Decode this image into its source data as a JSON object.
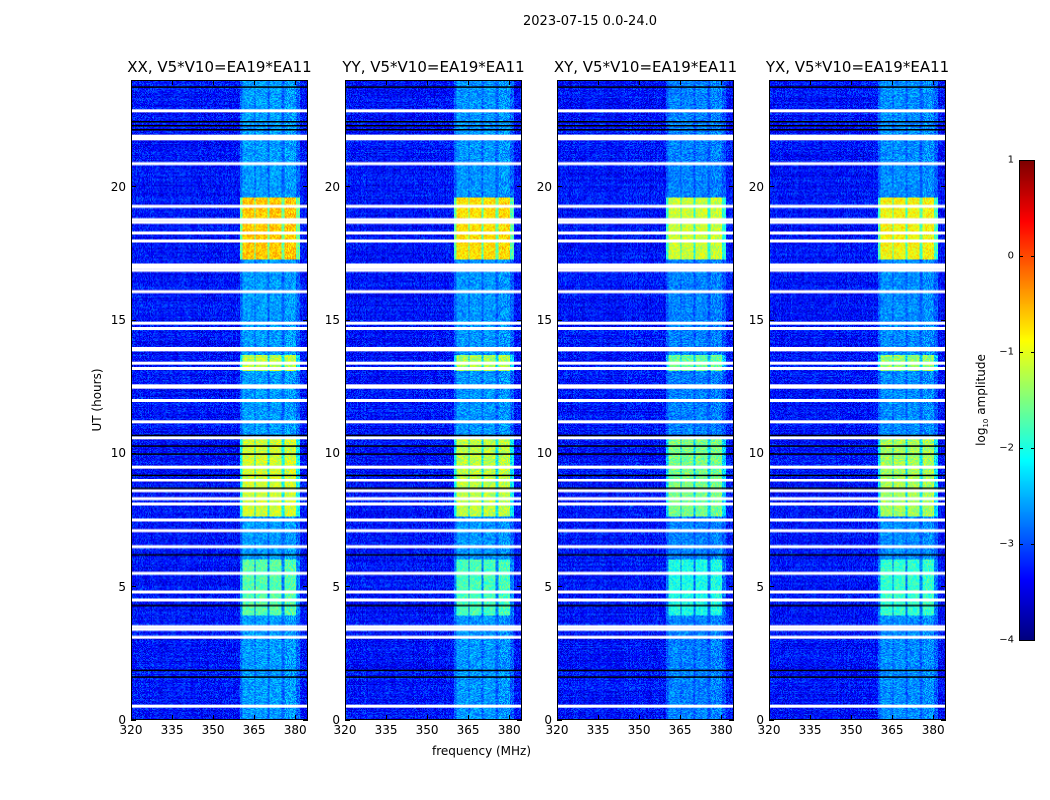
{
  "chart_data": {
    "type": "heatmap",
    "title": "2023-07-15 0.0-24.0",
    "xlabel": "frequency (MHz)",
    "ylabel": "UT (hours)",
    "xlim": [
      320,
      384.7
    ],
    "ylim": [
      0,
      24
    ],
    "xticks": [
      "320",
      "335",
      "350",
      "365",
      "380"
    ],
    "xtick_values": [
      320,
      335,
      350,
      365,
      380
    ],
    "yticks": [
      "0",
      "5",
      "10",
      "15",
      "20"
    ],
    "ytick_values": [
      0,
      5,
      10,
      15,
      20
    ],
    "colormap": "jet",
    "colorbar": {
      "label_main": "log",
      "label_sub": "10",
      "label_rest": " amplitude",
      "range": [
        -4,
        1
      ],
      "ticks": [
        "1",
        "0",
        "−1",
        "−2",
        "−3",
        "−4"
      ],
      "tick_values": [
        1,
        0,
        -1,
        -2,
        -3,
        -4
      ]
    },
    "panels": [
      {
        "title": "XX, V5*V10=EA19*EA11",
        "gain": 1.0
      },
      {
        "title": "YY, V5*V10=EA19*EA11",
        "gain": 0.95
      },
      {
        "title": "XY, V5*V10=EA19*EA11",
        "gain": 0.8
      },
      {
        "title": "YX, V5*V10=EA19*EA11",
        "gain": 0.9
      }
    ],
    "background_level": -3.3,
    "rfi_channels_mhz": [
      [
        361,
        365.4
      ],
      [
        365.8,
        370.2
      ],
      [
        370.9,
        375.3
      ],
      [
        376.4,
        380.8
      ]
    ],
    "rfi_time_intervals": [
      {
        "ut": [
          17.3,
          19.6
        ],
        "level": -0.6
      },
      {
        "ut": [
          7.6,
          10.6
        ],
        "level": -1.1
      },
      {
        "ut": [
          3.9,
          6.0
        ],
        "level": -1.7
      },
      {
        "ut": [
          13.1,
          13.7
        ],
        "level": -1.2
      },
      {
        "ut": [
          0,
          24
        ],
        "level": -2.6
      }
    ],
    "flagged_ut_white": [
      0.5,
      3.1,
      3.4,
      3.5,
      4.5,
      4.8,
      5.5,
      6.5,
      7.1,
      7.5,
      8.1,
      8.3,
      8.6,
      9.0,
      9.5,
      10.6,
      11.2,
      12.0,
      12.5,
      12.55,
      13.2,
      13.4,
      13.9,
      13.95,
      14.7,
      14.9,
      16.1,
      16.9,
      17.0,
      17.1,
      18.0,
      18.3,
      18.7,
      18.8,
      19.3,
      20.9,
      21.85,
      21.9,
      21.95,
      22.9
    ],
    "flagged_ut_black": [
      1.6,
      1.85,
      4.3,
      6.2,
      8.7,
      9.2,
      10.0,
      10.3,
      10.7,
      22.2,
      22.35,
      22.5,
      23.8
    ]
  }
}
